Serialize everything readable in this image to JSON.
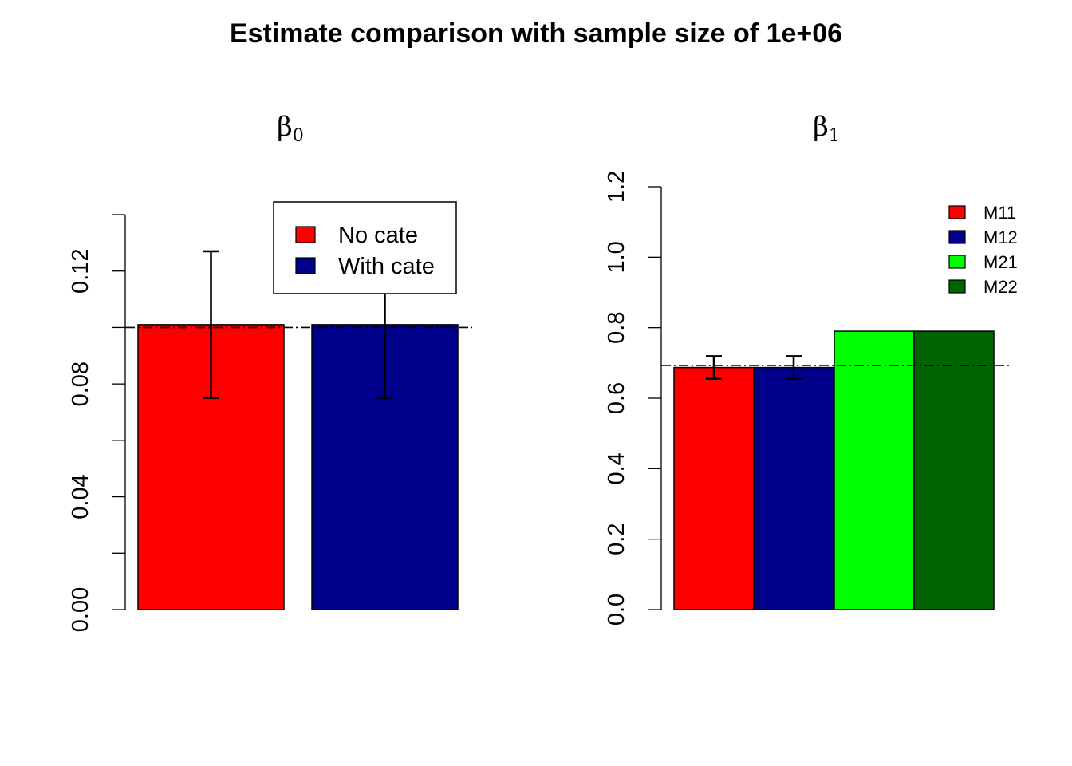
{
  "figure_title": "Estimate comparison with sample size of 1e+06",
  "chart_data": [
    {
      "type": "bar",
      "title": "β",
      "title_subscript": "0",
      "xlabel": "",
      "ylabel": "",
      "categories": [
        "No cate",
        "With cate"
      ],
      "values": [
        0.101,
        0.101
      ],
      "errors": [
        [
          0.075,
          0.127
        ],
        [
          0.075,
          0.127
        ]
      ],
      "colors": [
        "#FF0000",
        "#00008B"
      ],
      "reference_line": 0.1,
      "ylim": [
        0,
        0.14
      ],
      "yticks": [
        0.0,
        0.04,
        0.08,
        0.12
      ],
      "ytick_labels": [
        "0.00",
        "0.04",
        "0.08",
        "0.12"
      ],
      "legend": {
        "position": "top-right",
        "entries": [
          {
            "label": "No cate",
            "color": "#FF0000"
          },
          {
            "label": "With cate",
            "color": "#00008B"
          }
        ]
      }
    },
    {
      "type": "bar",
      "title": "β",
      "title_subscript": "1",
      "xlabel": "",
      "ylabel": "",
      "categories": [
        "M11",
        "M12",
        "M21",
        "M22"
      ],
      "values": [
        0.687,
        0.687,
        0.79,
        0.79
      ],
      "errors": [
        [
          0.655,
          0.719
        ],
        [
          0.655,
          0.719
        ],
        null,
        null
      ],
      "colors": [
        "#FF0000",
        "#00008B",
        "#00FF00",
        "#006400"
      ],
      "reference_line": 0.693,
      "ylim": [
        0,
        1.2
      ],
      "yticks": [
        0.0,
        0.2,
        0.4,
        0.6,
        0.8,
        1.0,
        1.2
      ],
      "ytick_labels": [
        "0.0",
        "0.2",
        "0.4",
        "0.6",
        "0.8",
        "1.0",
        "1.2"
      ],
      "legend": {
        "position": "top-right",
        "entries": [
          {
            "label": "M11",
            "color": "#FF0000"
          },
          {
            "label": "M12",
            "color": "#00008B"
          },
          {
            "label": "M21",
            "color": "#00FF00"
          },
          {
            "label": "M22",
            "color": "#006400"
          }
        ]
      }
    }
  ]
}
